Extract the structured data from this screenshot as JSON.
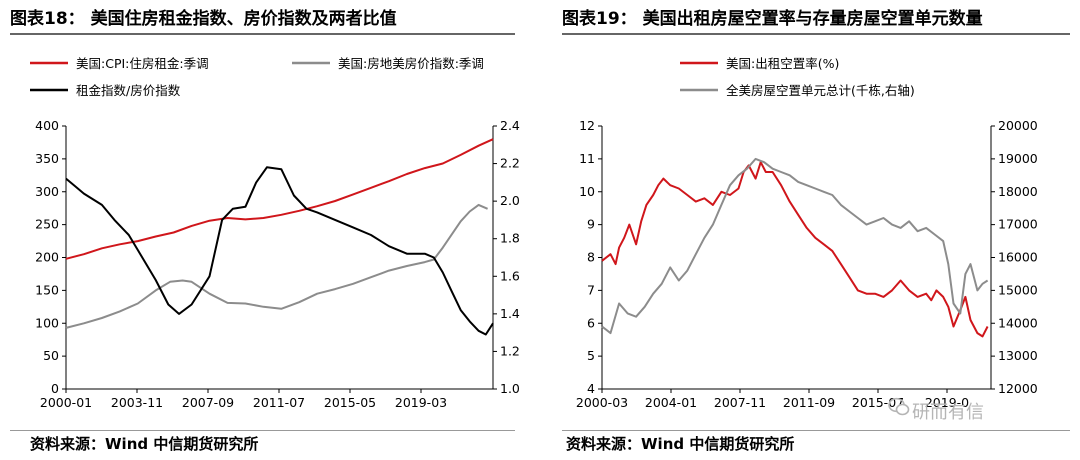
{
  "page": {
    "left_title": "图表18： 美国住房租金指数、房价指数及两者比值",
    "right_title": "图表19： 美国出租房屋空置率与存量房屋空置单元数量",
    "left_source": "资料来源：Wind 中信期货研究所",
    "right_source": "资料来源：Wind 中信期货研究所",
    "watermark": "研而有信"
  },
  "chart_data": [
    {
      "type": "line",
      "title": "图表18： 美国住房租金指数、房价指数及两者比值",
      "x_ticks": [
        "2000-01",
        "2003-11",
        "2007-09",
        "2011-07",
        "2015-05",
        "2019-03"
      ],
      "x_range": [
        2000.0,
        2023.8
      ],
      "y_left": {
        "min": 0,
        "max": 400,
        "ticks": [
          0,
          50,
          100,
          150,
          200,
          250,
          300,
          350,
          400
        ]
      },
      "y_right": {
        "min": 1.0,
        "max": 2.4,
        "ticks": [
          "1.0",
          "1.2",
          "1.4",
          "1.6",
          "1.8",
          "2.0",
          "2.2",
          "2.4"
        ]
      },
      "legend_placement": "top",
      "series": [
        {
          "name": "美国:CPI:住房租金:季调",
          "color": "#d0161b",
          "axis": "left",
          "x": [
            2000.0,
            2001.0,
            2002.0,
            2003.0,
            2004.0,
            2005.0,
            2006.0,
            2007.0,
            2008.0,
            2009.0,
            2010.0,
            2011.0,
            2012.0,
            2013.0,
            2014.0,
            2015.0,
            2016.0,
            2017.0,
            2018.0,
            2019.0,
            2020.0,
            2021.0,
            2022.0,
            2023.0,
            2023.8
          ],
          "y": [
            198,
            205,
            214,
            220,
            225,
            232,
            238,
            248,
            256,
            260,
            258,
            260,
            265,
            271,
            278,
            286,
            296,
            306,
            316,
            327,
            336,
            343,
            356,
            370,
            380
          ]
        },
        {
          "name": "美国:房地美房价指数:季调",
          "color": "#8c8c8c",
          "axis": "left",
          "x": [
            2000.0,
            2001.0,
            2002.0,
            2003.0,
            2004.0,
            2005.0,
            2005.8,
            2006.5,
            2007.0,
            2008.0,
            2009.0,
            2010.0,
            2011.0,
            2012.0,
            2013.0,
            2014.0,
            2015.0,
            2016.0,
            2017.0,
            2018.0,
            2019.0,
            2020.0,
            2020.5,
            2021.0,
            2022.0,
            2022.5,
            2023.0,
            2023.5
          ],
          "y": [
            93,
            100,
            108,
            118,
            130,
            150,
            163,
            165,
            163,
            145,
            131,
            130,
            125,
            122,
            132,
            145,
            152,
            160,
            170,
            180,
            187,
            193,
            197,
            215,
            255,
            270,
            280,
            274
          ]
        },
        {
          "name": "租金指数/房价指数",
          "color": "#000000",
          "axis": "right",
          "x": [
            2000.0,
            2000.5,
            2001.0,
            2002.0,
            2002.7,
            2003.5,
            2004.0,
            2005.0,
            2005.7,
            2006.3,
            2007.0,
            2008.0,
            2008.7,
            2009.3,
            2010.0,
            2010.6,
            2011.2,
            2012.0,
            2012.7,
            2013.4,
            2014.0,
            2015.0,
            2016.0,
            2017.0,
            2018.0,
            2019.0,
            2020.0,
            2020.5,
            2021.0,
            2021.5,
            2022.0,
            2022.5,
            2023.0,
            2023.4,
            2023.8
          ],
          "y": [
            2.12,
            2.08,
            2.04,
            1.98,
            1.9,
            1.82,
            1.74,
            1.58,
            1.45,
            1.4,
            1.45,
            1.6,
            1.9,
            1.96,
            1.97,
            2.1,
            2.18,
            2.17,
            2.03,
            1.96,
            1.94,
            1.9,
            1.86,
            1.82,
            1.76,
            1.72,
            1.72,
            1.7,
            1.62,
            1.52,
            1.42,
            1.36,
            1.31,
            1.29,
            1.35
          ]
        }
      ]
    },
    {
      "type": "line",
      "title": "图表19： 美国出租房屋空置率与存量房屋空置单元数量",
      "x_ticks": [
        "2000-03",
        "2004-01",
        "2007-11",
        "2011-09",
        "2015-07",
        "2019-0"
      ],
      "x_range": [
        2000.0,
        2022.8
      ],
      "y_left": {
        "min": 4,
        "max": 12,
        "ticks": [
          4,
          5,
          6,
          7,
          8,
          9,
          10,
          11,
          12
        ]
      },
      "y_right": {
        "min": 12000,
        "max": 20000,
        "ticks": [
          12000,
          13000,
          14000,
          15000,
          16000,
          17000,
          18000,
          19000,
          20000
        ]
      },
      "legend_placement": "top",
      "series": [
        {
          "name": "美国:出租空置率(%)",
          "color": "#d0161b",
          "axis": "left",
          "x": [
            2000.0,
            2000.5,
            2000.8,
            2001.0,
            2001.3,
            2001.6,
            2002.0,
            2002.3,
            2002.6,
            2003.0,
            2003.3,
            2003.6,
            2004.0,
            2004.5,
            2005.0,
            2005.5,
            2006.0,
            2006.5,
            2007.0,
            2007.5,
            2008.0,
            2008.3,
            2008.6,
            2009.0,
            2009.3,
            2009.6,
            2010.0,
            2010.5,
            2011.0,
            2011.5,
            2012.0,
            2012.5,
            2013.0,
            2013.5,
            2014.0,
            2014.5,
            2015.0,
            2015.5,
            2016.0,
            2016.5,
            2017.0,
            2017.5,
            2018.0,
            2018.5,
            2019.0,
            2019.3,
            2019.6,
            2020.0,
            2020.3,
            2020.6,
            2021.0,
            2021.3,
            2021.6,
            2022.0,
            2022.3,
            2022.6
          ],
          "y": [
            7.9,
            8.1,
            7.8,
            8.3,
            8.6,
            9.0,
            8.4,
            9.1,
            9.6,
            9.9,
            10.2,
            10.4,
            10.2,
            10.1,
            9.9,
            9.7,
            9.8,
            9.6,
            10.0,
            9.9,
            10.1,
            10.6,
            10.8,
            10.4,
            10.9,
            10.6,
            10.6,
            10.2,
            9.7,
            9.3,
            8.9,
            8.6,
            8.4,
            8.2,
            7.8,
            7.4,
            7.0,
            6.9,
            6.9,
            6.8,
            7.0,
            7.3,
            7.0,
            6.8,
            6.9,
            6.7,
            7.0,
            6.8,
            6.5,
            5.9,
            6.4,
            6.8,
            6.1,
            5.7,
            5.6,
            5.9
          ]
        },
        {
          "name": "全美房屋空置单元总计(千栋,右轴)",
          "color": "#8c8c8c",
          "axis": "right",
          "x": [
            2000.0,
            2000.5,
            2001.0,
            2001.5,
            2002.0,
            2002.5,
            2003.0,
            2003.5,
            2004.0,
            2004.5,
            2005.0,
            2005.5,
            2006.0,
            2006.5,
            2007.0,
            2007.5,
            2008.0,
            2008.5,
            2009.0,
            2009.5,
            2010.0,
            2010.5,
            2011.0,
            2011.5,
            2012.0,
            2012.5,
            2013.0,
            2013.5,
            2014.0,
            2014.5,
            2015.0,
            2015.5,
            2016.0,
            2016.5,
            2017.0,
            2017.5,
            2018.0,
            2018.5,
            2019.0,
            2019.5,
            2020.0,
            2020.3,
            2020.6,
            2021.0,
            2021.3,
            2021.6,
            2022.0,
            2022.3,
            2022.6
          ],
          "y": [
            13900,
            13700,
            14600,
            14300,
            14200,
            14500,
            14900,
            15200,
            15700,
            15300,
            15600,
            16100,
            16600,
            17000,
            17600,
            18200,
            18500,
            18700,
            19000,
            18900,
            18700,
            18600,
            18500,
            18300,
            18200,
            18100,
            18000,
            17900,
            17600,
            17400,
            17200,
            17000,
            17100,
            17200,
            17000,
            16900,
            17100,
            16800,
            16900,
            16700,
            16500,
            15800,
            14600,
            14300,
            15500,
            15800,
            15000,
            15200,
            15300
          ]
        }
      ]
    }
  ]
}
